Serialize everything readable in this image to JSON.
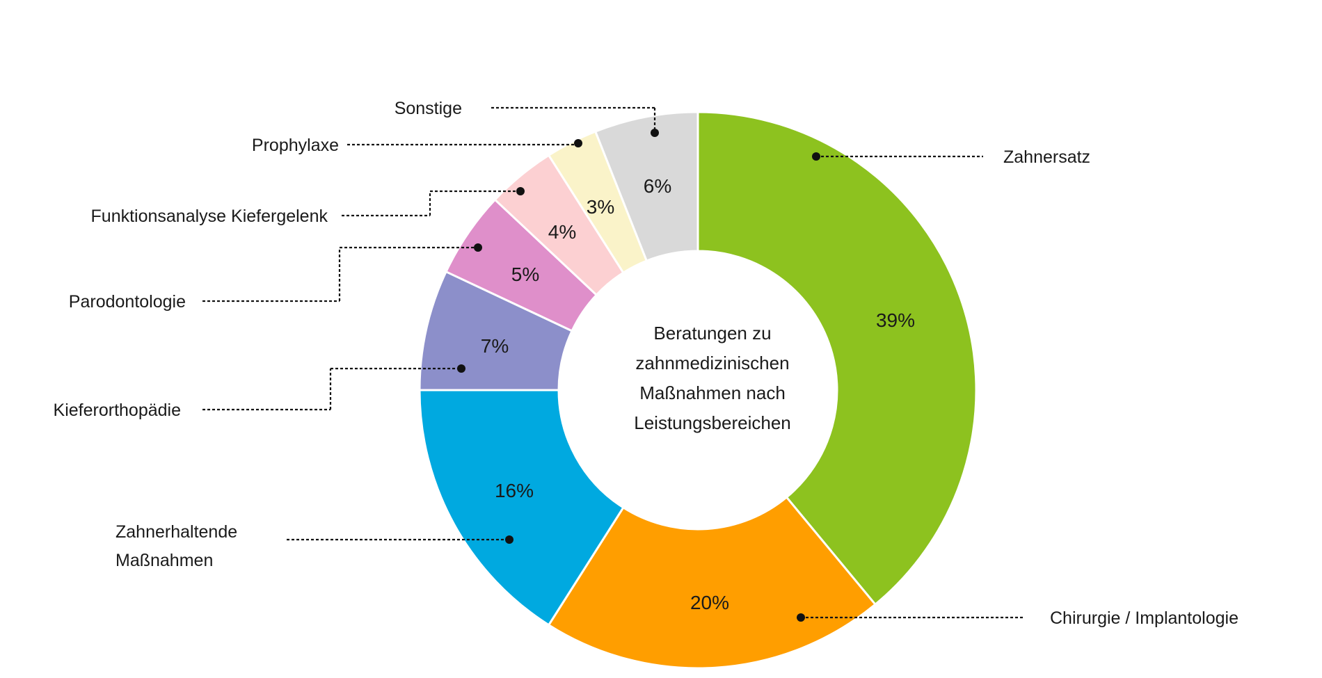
{
  "chart_data": {
    "type": "pie",
    "variant": "donut",
    "center_title": [
      "Beratungen zu",
      "zahnmedizinischen",
      "Maßnahmen nach",
      "Leistungsbereichen"
    ],
    "slices": [
      {
        "label": "Zahnersatz",
        "value": 39,
        "value_label": "39%",
        "color": "#8dc21f"
      },
      {
        "label": "Chirurgie / Implantologie",
        "value": 20,
        "value_label": "20%",
        "color": "#ff9e00"
      },
      {
        "label": "Zahnerhaltende Maßnahmen",
        "value": 16,
        "value_label": "16%",
        "color": "#00a9e0"
      },
      {
        "label": "Kieferorthopädie",
        "value": 7,
        "value_label": "7%",
        "color": "#8c8fca"
      },
      {
        "label": "Parodontologie",
        "value": 5,
        "value_label": "5%",
        "color": "#df8fca"
      },
      {
        "label": "Funktionsanalyse Kiefergelenk",
        "value": 4,
        "value_label": "4%",
        "color": "#fcd0d2"
      },
      {
        "label": "Prophylaxe",
        "value": 3,
        "value_label": "3%",
        "color": "#faf3c9"
      },
      {
        "label": "Sonstige",
        "value": 6,
        "value_label": "6%",
        "color": "#d9d9d9"
      }
    ],
    "start_angle": "top",
    "direction": "clockwise"
  }
}
